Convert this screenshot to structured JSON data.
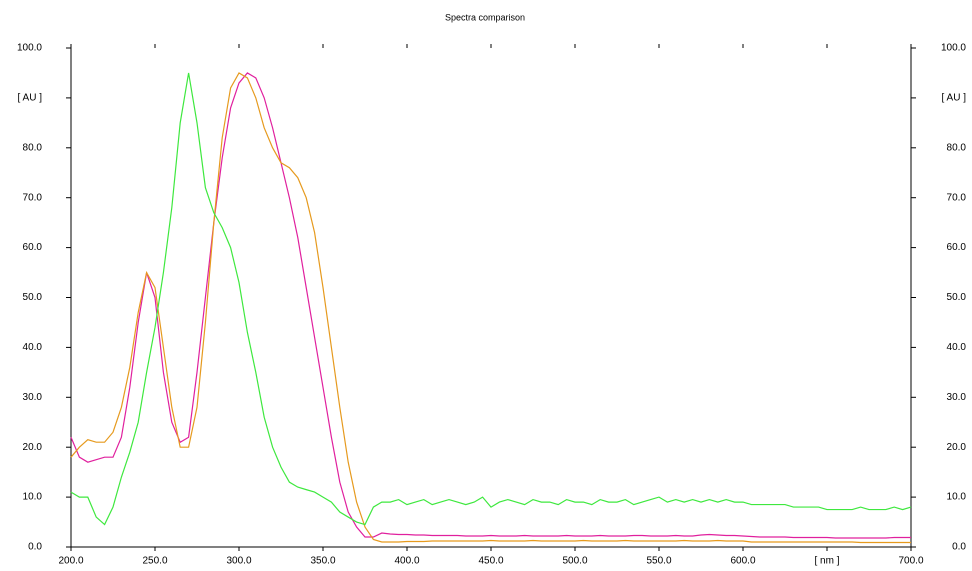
{
  "chart_data": {
    "type": "line",
    "title": "Spectra comparison",
    "x": [
      200,
      205,
      210,
      215,
      220,
      225,
      230,
      235,
      240,
      245,
      250,
      255,
      260,
      265,
      270,
      275,
      280,
      285,
      290,
      295,
      300,
      305,
      310,
      315,
      320,
      325,
      330,
      335,
      340,
      345,
      350,
      355,
      360,
      365,
      370,
      375,
      380,
      385,
      390,
      395,
      400,
      405,
      410,
      415,
      420,
      425,
      430,
      435,
      440,
      445,
      450,
      455,
      460,
      465,
      470,
      475,
      480,
      485,
      490,
      495,
      500,
      505,
      510,
      515,
      520,
      525,
      530,
      535,
      540,
      545,
      550,
      555,
      560,
      565,
      570,
      575,
      580,
      585,
      590,
      595,
      600,
      605,
      610,
      615,
      620,
      625,
      630,
      635,
      640,
      645,
      650,
      655,
      660,
      665,
      670,
      675,
      680,
      685,
      690,
      695,
      700
    ],
    "series": [
      {
        "color": "#e0209e",
        "values": [
          22,
          18,
          17,
          17.5,
          18,
          18,
          22,
          32,
          45,
          55,
          50,
          35,
          25,
          21,
          22,
          35,
          50,
          65,
          78,
          88,
          93,
          95,
          94,
          90,
          84,
          77,
          70,
          62,
          52,
          42,
          32,
          22,
          13,
          7,
          4,
          2,
          2,
          2.8,
          2.6,
          2.5,
          2.5,
          2.4,
          2.4,
          2.3,
          2.3,
          2.3,
          2.3,
          2.2,
          2.2,
          2.2,
          2.3,
          2.2,
          2.2,
          2.2,
          2.3,
          2.2,
          2.2,
          2.2,
          2.2,
          2.3,
          2.2,
          2.2,
          2.2,
          2.3,
          2.2,
          2.2,
          2.2,
          2.3,
          2.3,
          2.2,
          2.2,
          2.2,
          2.3,
          2.2,
          2.2,
          2.4,
          2.5,
          2.4,
          2.3,
          2.3,
          2.2,
          2.1,
          2.0,
          2.0,
          2.0,
          2.0,
          1.9,
          1.9,
          1.9,
          1.9,
          1.9,
          1.8,
          1.8,
          1.8,
          1.8,
          1.8,
          1.8,
          1.8,
          1.9,
          1.9,
          1.9
        ]
      },
      {
        "color": "#e69a1e",
        "values": [
          18,
          20,
          21.5,
          21,
          21,
          23,
          28,
          36,
          47,
          55,
          52,
          40,
          28,
          20,
          20,
          28,
          45,
          65,
          82,
          92,
          95,
          94,
          90,
          84,
          80,
          77,
          76,
          74,
          70,
          63,
          52,
          40,
          28,
          17,
          9,
          4,
          1.5,
          1,
          1.0,
          1.0,
          1.1,
          1.1,
          1.1,
          1.2,
          1.2,
          1.2,
          1.2,
          1.2,
          1.2,
          1.2,
          1.3,
          1.2,
          1.2,
          1.2,
          1.2,
          1.3,
          1.2,
          1.2,
          1.2,
          1.2,
          1.2,
          1.3,
          1.2,
          1.2,
          1.2,
          1.2,
          1.3,
          1.2,
          1.2,
          1.2,
          1.2,
          1.2,
          1.2,
          1.3,
          1.2,
          1.2,
          1.2,
          1.3,
          1.2,
          1.2,
          1.2,
          1.0,
          1.0,
          1.0,
          1.0,
          1.0,
          1.0,
          1.0,
          1.0,
          1.0,
          1.0,
          1.0,
          1.0,
          1.0,
          0.9,
          0.9,
          0.9,
          0.9,
          0.9,
          0.9,
          0.9
        ]
      },
      {
        "color": "#3ee83e",
        "values": [
          11,
          10,
          10,
          6,
          4.5,
          8,
          14,
          19,
          25,
          35,
          44,
          55,
          68,
          85,
          95,
          85,
          72,
          67,
          64,
          60,
          53,
          43,
          35,
          26,
          20,
          16,
          13,
          12,
          11.5,
          11,
          10,
          9,
          7,
          6,
          5,
          4.5,
          8,
          9,
          9,
          9.5,
          8.5,
          9,
          9.5,
          8.5,
          9,
          9.5,
          9,
          8.5,
          9,
          10,
          8,
          9,
          9.5,
          9,
          8.5,
          9.5,
          9,
          9,
          8.5,
          9.5,
          9,
          9,
          8.5,
          9.5,
          9,
          9,
          9.5,
          8.5,
          9,
          9.5,
          10,
          9,
          9.5,
          9,
          9.5,
          9,
          9.5,
          9,
          9.5,
          9,
          9,
          8.5,
          8.5,
          8.5,
          8.5,
          8.5,
          8,
          8,
          8,
          8,
          7.5,
          7.5,
          7.5,
          7.5,
          8,
          7.5,
          7.5,
          7.5,
          8,
          7.5,
          8
        ]
      }
    ],
    "xlim": [
      200,
      700
    ],
    "xticks": [
      {
        "value": 200,
        "label": "200.0"
      },
      {
        "value": 250,
        "label": "250.0"
      },
      {
        "value": 300,
        "label": "300.0"
      },
      {
        "value": 350,
        "label": "350.0"
      },
      {
        "value": 400,
        "label": "400.0"
      },
      {
        "value": 450,
        "label": "450.0"
      },
      {
        "value": 500,
        "label": "500.0"
      },
      {
        "value": 550,
        "label": "550.0"
      },
      {
        "value": 600,
        "label": "600.0"
      },
      {
        "value": 650,
        "label": "[ nm ]"
      },
      {
        "value": 700,
        "label": "700.0"
      }
    ],
    "ylim": [
      0,
      100
    ],
    "yticks": [
      {
        "value": 0,
        "label": "0.0"
      },
      {
        "value": 10,
        "label": "10.0"
      },
      {
        "value": 20,
        "label": "20.0"
      },
      {
        "value": 30,
        "label": "30.0"
      },
      {
        "value": 40,
        "label": "40.0"
      },
      {
        "value": 50,
        "label": "50.0"
      },
      {
        "value": 60,
        "label": "60.0"
      },
      {
        "value": 70,
        "label": "70.0"
      },
      {
        "value": 80,
        "label": "80.0"
      },
      {
        "value": 90,
        "label": "[ AU ]"
      },
      {
        "value": 100,
        "label": "100.0"
      }
    ],
    "y2lim": [
      0,
      100
    ],
    "y2ticks": [
      {
        "value": 0,
        "label": "0.0"
      },
      {
        "value": 10,
        "label": "10.0"
      },
      {
        "value": 20,
        "label": "20.0"
      },
      {
        "value": 30,
        "label": "30.0"
      },
      {
        "value": 40,
        "label": "40.0"
      },
      {
        "value": 50,
        "label": "50.0"
      },
      {
        "value": 60,
        "label": "60.0"
      },
      {
        "value": 70,
        "label": "70.0"
      },
      {
        "value": 80,
        "label": "80.0"
      },
      {
        "value": 90,
        "label": "[ AU ]"
      },
      {
        "value": 100,
        "label": "100.0"
      }
    ],
    "grid": false
  }
}
